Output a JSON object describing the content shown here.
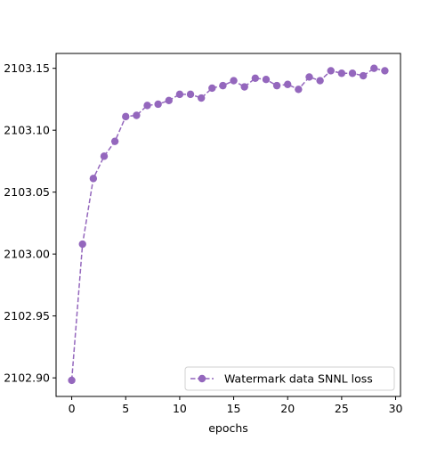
{
  "chart_data": {
    "type": "line",
    "title": "",
    "xlabel": "epochs",
    "ylabel": "",
    "xlim": [
      -1.45,
      30.45
    ],
    "ylim": [
      2102.885,
      2103.162
    ],
    "xticks": [
      0,
      5,
      10,
      15,
      20,
      25,
      30
    ],
    "xtick_labels": [
      "0",
      "5",
      "10",
      "15",
      "20",
      "25",
      "30"
    ],
    "yticks": [
      2102.9,
      2102.95,
      2103.0,
      2103.05,
      2103.1,
      2103.15
    ],
    "ytick_labels": [
      "2102.90",
      "2102.95",
      "2103.00",
      "2103.05",
      "2103.10",
      "2103.15"
    ],
    "grid": false,
    "legend_position": "lower right",
    "series": [
      {
        "name": "Watermark data SNNL loss",
        "color": "#9467bd",
        "linestyle": "dashed",
        "marker": "circle",
        "x": [
          0,
          1,
          2,
          3,
          4,
          5,
          6,
          7,
          8,
          9,
          10,
          11,
          12,
          13,
          14,
          15,
          16,
          17,
          18,
          19,
          20,
          21,
          22,
          23,
          24,
          25,
          26,
          27,
          28,
          29
        ],
        "y": [
          2102.898,
          2103.008,
          2103.061,
          2103.079,
          2103.091,
          2103.111,
          2103.112,
          2103.12,
          2103.121,
          2103.124,
          2103.129,
          2103.129,
          2103.126,
          2103.134,
          2103.136,
          2103.14,
          2103.135,
          2103.142,
          2103.141,
          2103.136,
          2103.137,
          2103.133,
          2103.143,
          2103.14,
          2103.148,
          2103.146,
          2103.146,
          2103.144,
          2103.15,
          2103.148
        ]
      }
    ]
  }
}
